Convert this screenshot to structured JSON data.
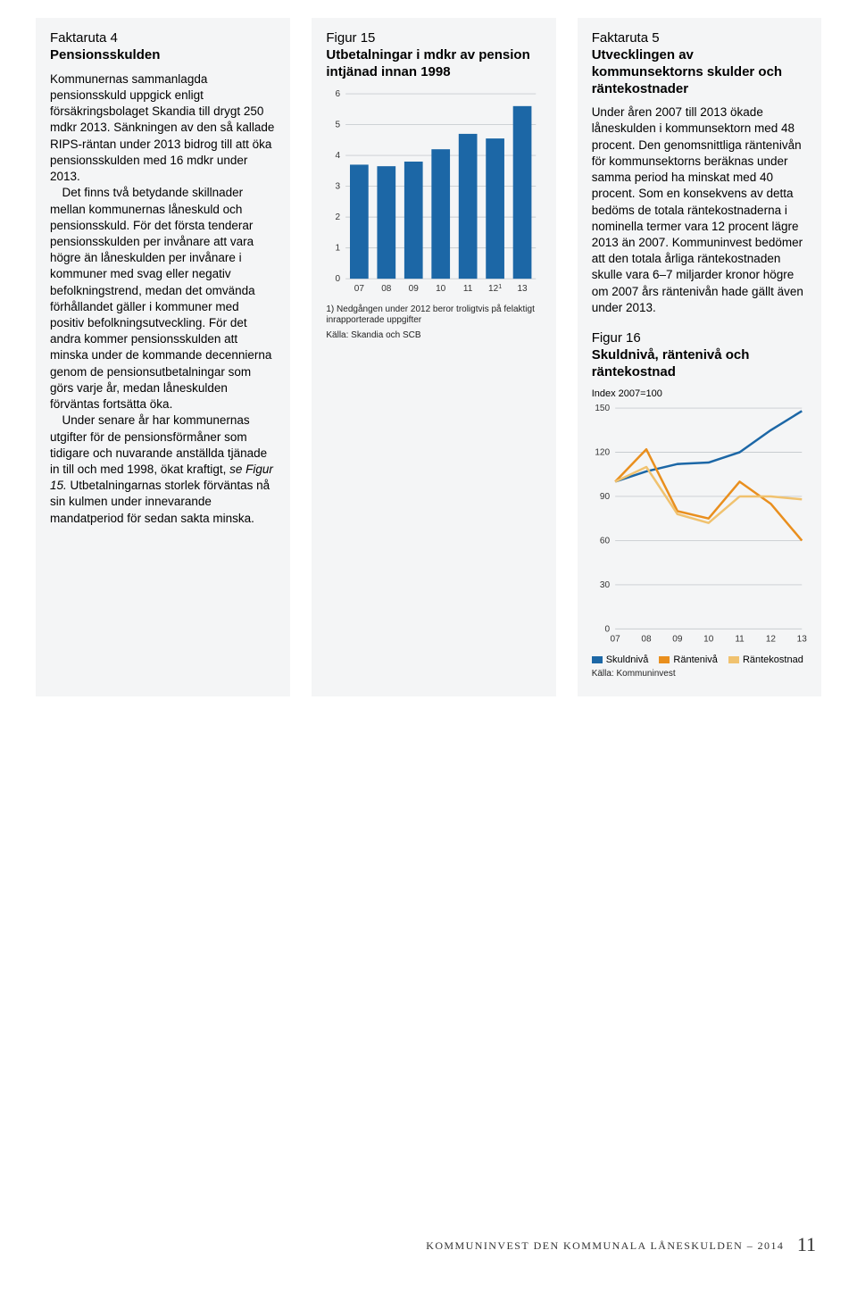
{
  "col1": {
    "fakta_num": "Faktaruta 4",
    "fakta_title": "Pensionsskulden",
    "p1": "Kommunernas sammanlagda pensionsskuld uppgick enligt försäkringsbolaget Skandia till drygt 250 mdkr 2013. Sänkningen av den så kallade RIPS-räntan under 2013 bidrog till att öka pensionsskulden med 16 mdkr under 2013.",
    "p2": "Det finns två betydande skillnader mellan kommunernas låneskuld och pensionsskuld. För det första tenderar pensionsskulden per invånare att vara högre än låneskulden per invånare i kommuner med svag eller negativ befolkningstrend, medan det omvända förhållandet gäller i kommuner med positiv befolkningsutveckling. För det andra kommer pensionsskulden att minska under de kommande decennierna genom de pensionsutbetalningar som görs varje år, medan låneskulden förväntas fortsätta öka.",
    "p3a": "Under senare år har kommunernas utgifter för de pensionsförmåner som tidigare och nuvarande anställda tjänade in till och med 1998, ökat kraftigt, ",
    "p3i": "se Figur 15.",
    "p3b": " Utbetalningarnas storlek förväntas nå sin kulmen under innevarande mandatperiod för sedan sakta minska."
  },
  "col2": {
    "fig_num": "Figur 15",
    "fig_title": "Utbetalningar i mdkr av pension intjänad innan 1998",
    "chart": {
      "type": "bar",
      "categories": [
        "07",
        "08",
        "09",
        "10",
        "11",
        "12¹",
        "13"
      ],
      "values": [
        3.7,
        3.65,
        3.8,
        4.2,
        4.7,
        4.55,
        5.6
      ],
      "ylim": [
        0,
        6
      ],
      "yticks": [
        0,
        1,
        2,
        3,
        4,
        5,
        6
      ],
      "bar_color": "#1c67a6",
      "grid_color": "#c8ccd0",
      "bg_color": "#f4f5f6",
      "bar_width": 0.68,
      "axis_font": 10,
      "axis_color": "#333"
    },
    "note": "1) Nedgången under 2012 beror troligtvis på felaktigt inrapporterade uppgifter",
    "source": "Källa: Skandia och SCB"
  },
  "col3": {
    "fakta_num": "Faktaruta 5",
    "fakta_title": "Utvecklingen av kommunsektorns skulder och räntekostnader",
    "p1": "Under åren 2007 till 2013 ökade låneskulden i kommunsektorn med 48 procent. Den genomsnittliga räntenivån för kommunsektorns beräknas under samma period ha minskat med 40 procent. Som en konsekvens av detta bedöms de totala räntekostnaderna i nominella termer vara 12 procent lägre 2013 än 2007. Kommuninvest bedömer att den totala årliga räntekostnaden skulle vara 6–7 miljarder kronor högre om 2007 års räntenivån hade gällt även under 2013.",
    "fig_num": "Figur 16",
    "fig_title": "Skuldnivå, räntenivå och räntekostnad",
    "sub": "Index 2007=100",
    "chart": {
      "type": "line",
      "categories": [
        "07",
        "08",
        "09",
        "10",
        "11",
        "12",
        "13"
      ],
      "series": [
        {
          "name": "Skuldnivå",
          "color": "#1c67a6",
          "width": 2.5,
          "values": [
            100,
            107,
            112,
            113,
            120,
            135,
            148
          ]
        },
        {
          "name": "Räntenivå",
          "color": "#e98f1e",
          "width": 2.5,
          "values": [
            100,
            122,
            80,
            75,
            100,
            85,
            60
          ]
        },
        {
          "name": "Räntekostnad",
          "color": "#f0c26f",
          "width": 2.5,
          "values": [
            100,
            110,
            78,
            72,
            90,
            90,
            88
          ]
        }
      ],
      "ylim": [
        0,
        150
      ],
      "yticks": [
        0,
        30,
        60,
        90,
        120,
        150
      ],
      "grid_color": "#c8ccd0",
      "bg_color": "#f4f5f6",
      "axis_font": 10,
      "axis_color": "#333"
    },
    "legend": [
      {
        "label": "Skuldnivå",
        "color": "#1c67a6"
      },
      {
        "label": "Räntenivå",
        "color": "#e98f1e"
      },
      {
        "label": "Räntekostnad",
        "color": "#f0c26f"
      }
    ],
    "source": "Källa: Kommuninvest"
  },
  "footer": {
    "left": "KOMMUNINVEST",
    "mid": " DEN KOMMUNALA LÅNESKULDEN – 2014",
    "page": "11"
  }
}
